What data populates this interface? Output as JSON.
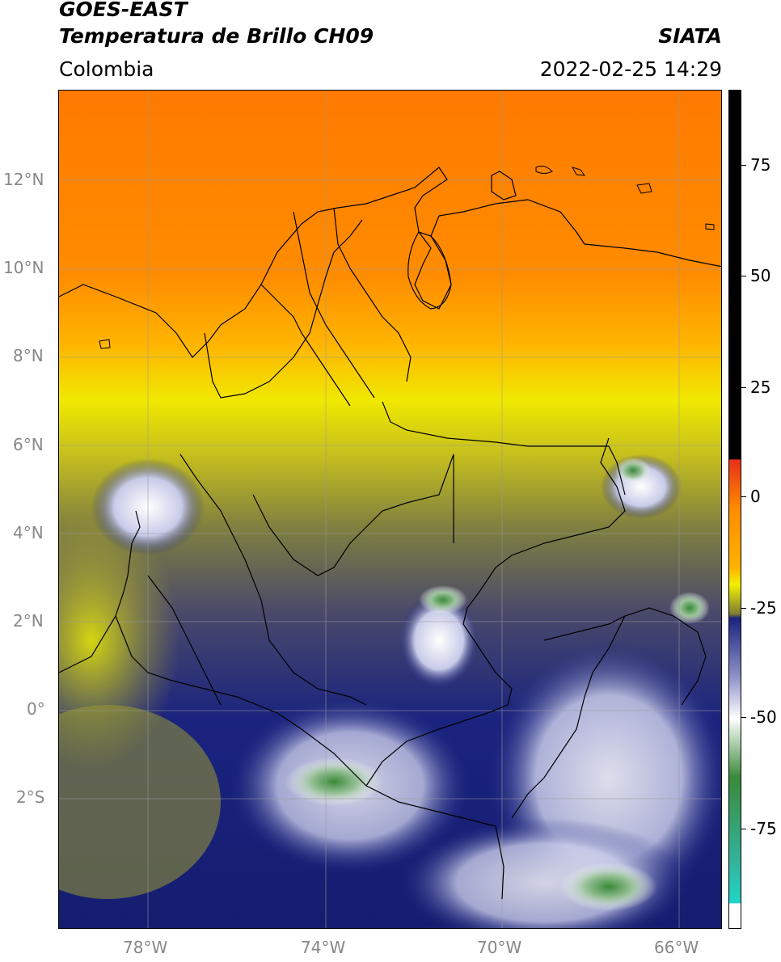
{
  "header": {
    "line1": "GOES-EAST",
    "line2": "Temperatura de Brillo CH09",
    "region": "Colombia",
    "source": "SIATA",
    "timestamp": "2022-02-25 14:29"
  },
  "map": {
    "lat_labels": [
      "12°N",
      "10°N",
      "8°N",
      "6°N",
      "4°N",
      "2°N",
      "0°",
      "2°S"
    ],
    "lon_labels": [
      "78°W",
      "74°W",
      "70°W",
      "66°W"
    ],
    "extent": {
      "lon": [
        -80,
        -65
      ],
      "lat": [
        -5,
        14
      ]
    }
  },
  "colorbar": {
    "labels": [
      "75",
      "50",
      "25",
      "0",
      "-25",
      "-50",
      "-75"
    ],
    "colors": {
      "black": "#000000",
      "red": "#e8301a",
      "orange": "#ff8c00",
      "yellow": "#f0f000",
      "olive": "#7d7d33",
      "navy": "#1a237e",
      "white": "#ffffff",
      "green": "#3a8a3a",
      "cyan": "#1fd6c9"
    }
  }
}
